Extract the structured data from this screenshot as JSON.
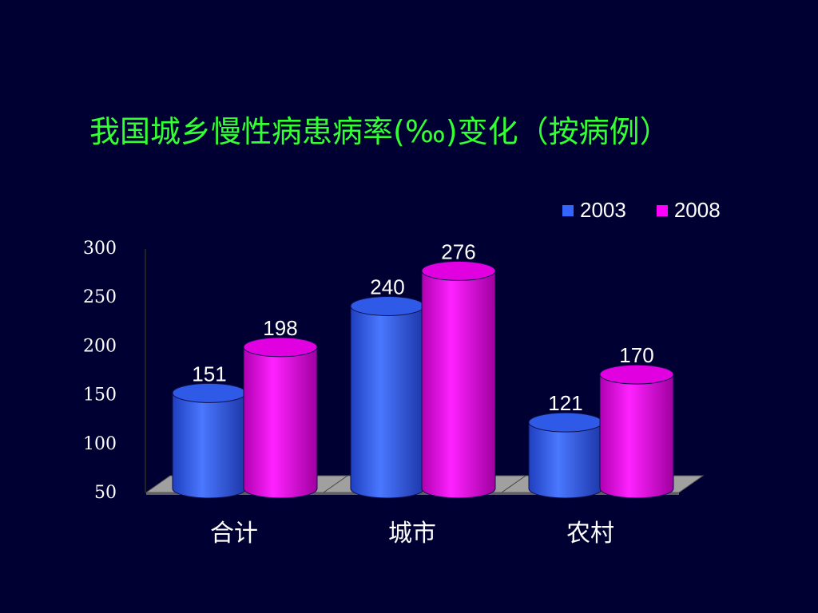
{
  "chart_data": {
    "type": "bar",
    "title": "我国城乡慢性病患病率(‰)变化（按病例）",
    "categories": [
      "合计",
      "城市",
      "农村"
    ],
    "series": [
      {
        "name": "2003",
        "values": [
          151,
          240,
          121
        ],
        "color": "#3366ff"
      },
      {
        "name": "2008",
        "values": [
          198,
          276,
          170
        ],
        "color": "#ff00ff"
      }
    ],
    "yticks": [
      "300",
      "250",
      "200",
      "150",
      "100",
      "50"
    ],
    "ylim": [
      50,
      300
    ],
    "legend_position": "top-right",
    "grid": false,
    "three_d": true
  }
}
